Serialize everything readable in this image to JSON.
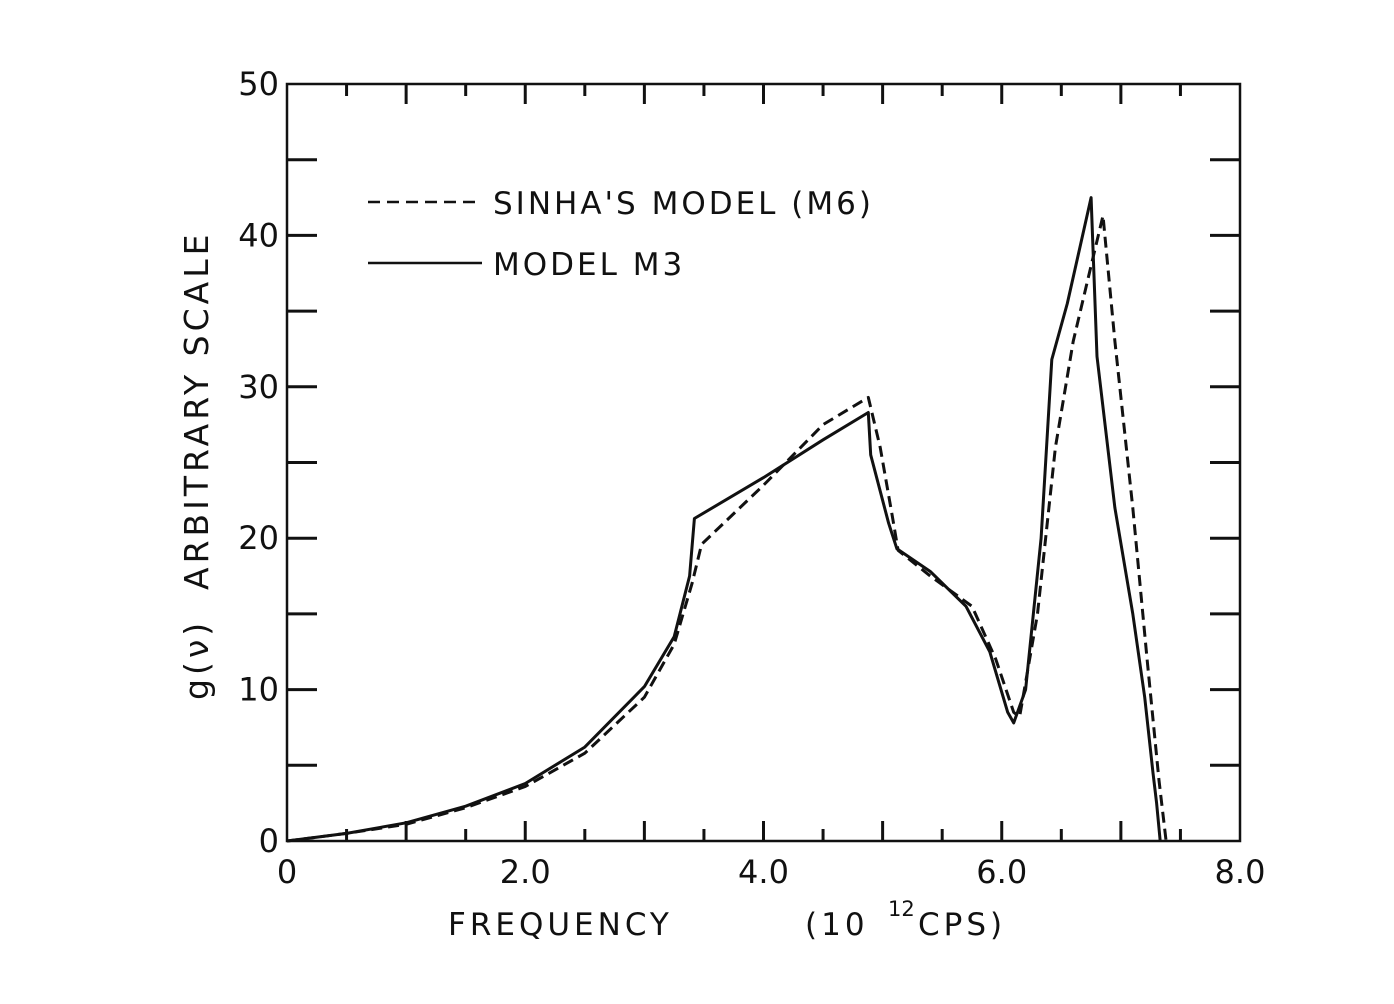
{
  "chart_data": {
    "type": "line",
    "xlim": [
      0,
      8
    ],
    "ylim": [
      0,
      50
    ],
    "xticks": [
      "0",
      "2.0",
      "4.0",
      "6.0",
      "8.0"
    ],
    "yticks": [
      "0",
      "10",
      "20",
      "30",
      "40",
      "50"
    ],
    "xminor_step": 1.0,
    "yminor_step": 5,
    "xlabel": {
      "main": "FREQUENCY",
      "unit_open": "(10",
      "unit_exp": "12",
      "unit_close": "CPS)"
    },
    "ylabel": {
      "symbol": "g(ν)",
      "text": "ARBITRARY SCALE"
    },
    "legend": {
      "position": "top-left",
      "entries": [
        {
          "label": "SINHA'S MODEL (M6)",
          "style": "dashed"
        },
        {
          "label": "MODEL M3",
          "style": "solid"
        }
      ]
    },
    "series": [
      {
        "name": "MODEL M3",
        "style": "solid",
        "points": [
          [
            0,
            0
          ],
          [
            0.5,
            0.5
          ],
          [
            1.0,
            1.2
          ],
          [
            1.5,
            2.3
          ],
          [
            2.0,
            3.8
          ],
          [
            2.5,
            6.2
          ],
          [
            3.0,
            10.2
          ],
          [
            3.25,
            13.5
          ],
          [
            3.38,
            17.5
          ],
          [
            3.42,
            21.3
          ],
          [
            4.0,
            24.0
          ],
          [
            4.5,
            26.5
          ],
          [
            4.88,
            28.3
          ],
          [
            4.9,
            25.5
          ],
          [
            5.05,
            21.0
          ],
          [
            5.12,
            19.3
          ],
          [
            5.4,
            17.8
          ],
          [
            5.7,
            15.5
          ],
          [
            5.9,
            12.5
          ],
          [
            6.05,
            8.5
          ],
          [
            6.1,
            7.8
          ],
          [
            6.2,
            10.0
          ],
          [
            6.33,
            20.0
          ],
          [
            6.42,
            31.8
          ],
          [
            6.55,
            35.5
          ],
          [
            6.75,
            42.5
          ],
          [
            6.8,
            32.0
          ],
          [
            6.95,
            22.0
          ],
          [
            7.1,
            15.0
          ],
          [
            7.2,
            9.5
          ],
          [
            7.27,
            4.5
          ],
          [
            7.3,
            2.5
          ],
          [
            7.33,
            0
          ]
        ]
      },
      {
        "name": "SINHA'S MODEL (M6)",
        "style": "dashed",
        "points": [
          [
            0,
            0
          ],
          [
            0.5,
            0.5
          ],
          [
            1.0,
            1.1
          ],
          [
            1.5,
            2.2
          ],
          [
            2.0,
            3.6
          ],
          [
            2.5,
            5.8
          ],
          [
            3.0,
            9.5
          ],
          [
            3.25,
            13.0
          ],
          [
            3.4,
            17.0
          ],
          [
            3.48,
            19.6
          ],
          [
            4.0,
            23.5
          ],
          [
            4.5,
            27.5
          ],
          [
            4.88,
            29.3
          ],
          [
            4.98,
            26.0
          ],
          [
            5.08,
            21.5
          ],
          [
            5.13,
            19.2
          ],
          [
            5.4,
            17.5
          ],
          [
            5.75,
            15.5
          ],
          [
            5.95,
            12.0
          ],
          [
            6.1,
            8.5
          ],
          [
            6.15,
            8.2
          ],
          [
            6.3,
            15.0
          ],
          [
            6.45,
            26.0
          ],
          [
            6.6,
            33.0
          ],
          [
            6.75,
            38.0
          ],
          [
            6.85,
            41.3
          ],
          [
            6.95,
            33.0
          ],
          [
            7.1,
            22.0
          ],
          [
            7.22,
            12.0
          ],
          [
            7.32,
            4.0
          ],
          [
            7.38,
            0
          ]
        ]
      }
    ]
  }
}
